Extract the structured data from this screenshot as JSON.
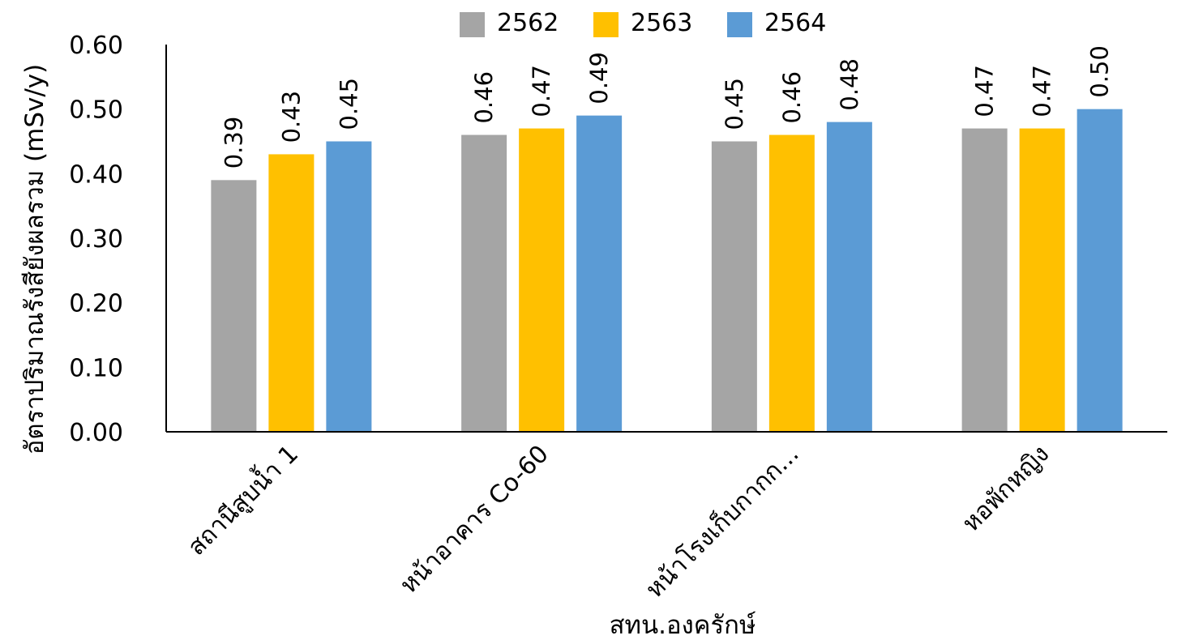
{
  "chart_data": {
    "type": "bar",
    "title": "",
    "xlabel": "สทน.องครักษ์",
    "ylabel": "อัตราปริมาณรังสียังผลรวม (mSv/y)",
    "ylim": [
      0,
      0.6
    ],
    "yticks": [
      "0.00",
      "0.10",
      "0.20",
      "0.30",
      "0.40",
      "0.50",
      "0.60"
    ],
    "categories": [
      "สถานีสูบน้ำ 1",
      "หน้าอาคาร Co-60",
      "หน้าโรงเก็บกากก...",
      "หอพักหญิง"
    ],
    "series": [
      {
        "name": "2562",
        "color": "#a5a5a5",
        "values": [
          0.39,
          0.46,
          0.45,
          0.47
        ],
        "labels": [
          "0.39",
          "0.46",
          "0.45",
          "0.47"
        ]
      },
      {
        "name": "2563",
        "color": "#ffc000",
        "values": [
          0.43,
          0.47,
          0.46,
          0.47
        ],
        "labels": [
          "0.43",
          "0.47",
          "0.46",
          "0.47"
        ]
      },
      {
        "name": "2564",
        "color": "#5b9bd5",
        "values": [
          0.45,
          0.49,
          0.48,
          0.5
        ],
        "labels": [
          "0.45",
          "0.49",
          "0.48",
          "0.50"
        ]
      }
    ],
    "legend": "top",
    "grid": false
  }
}
